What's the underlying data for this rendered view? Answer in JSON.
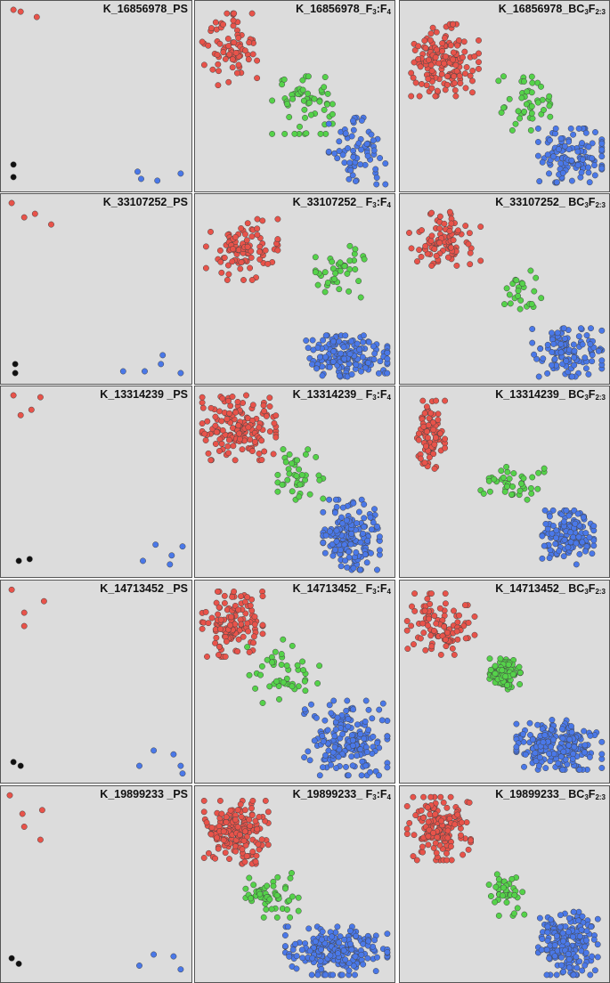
{
  "colors": {
    "background": "#dcdcdc",
    "border": "#555555",
    "red": "#e8534a",
    "green": "#55d24a",
    "blue": "#4a78e8",
    "black": "#111111",
    "outline": "#444444"
  },
  "chart_data": [
    {
      "type": "scatter",
      "title": "K_16856978_PS",
      "title_parts": [
        "K_16856978_PS"
      ],
      "xlim": [
        0,
        1
      ],
      "ylim": [
        0,
        1
      ],
      "grid": false,
      "series": [
        {
          "color": "red",
          "points": [
            [
              0.04,
              0.98
            ],
            [
              0.08,
              0.97
            ],
            [
              0.17,
              0.94
            ]
          ]
        },
        {
          "color": "black",
          "points": [
            [
              0.04,
              0.12
            ],
            [
              0.04,
              0.05
            ]
          ]
        },
        {
          "color": "blue",
          "points": [
            [
              0.73,
              0.08
            ],
            [
              0.75,
              0.04
            ],
            [
              0.84,
              0.03
            ],
            [
              0.97,
              0.07
            ]
          ]
        }
      ]
    },
    {
      "type": "scatter",
      "title": "K_16856978_F3:F4",
      "title_parts": [
        "K_16856978_F",
        "3",
        ":F",
        "4"
      ],
      "xlim": [
        0,
        1
      ],
      "ylim": [
        0,
        1
      ],
      "grid": false,
      "clusters": [
        {
          "color": "red",
          "cx": 0.15,
          "cy": 0.76,
          "rx": 0.15,
          "ry": 0.2,
          "n": 72
        },
        {
          "color": "green",
          "cx": 0.54,
          "cy": 0.45,
          "rx": 0.16,
          "ry": 0.16,
          "n": 60
        },
        {
          "color": "blue",
          "cx": 0.83,
          "cy": 0.18,
          "rx": 0.15,
          "ry": 0.2,
          "n": 70
        }
      ]
    },
    {
      "type": "scatter",
      "title": "K_16856978_BC3F2:3",
      "title_parts": [
        "K_16856978_BC",
        "3",
        "F",
        "2:3"
      ],
      "xlim": [
        0,
        1
      ],
      "ylim": [
        0,
        1
      ],
      "grid": false,
      "clusters": [
        {
          "color": "red",
          "cx": 0.2,
          "cy": 0.7,
          "rx": 0.17,
          "ry": 0.2,
          "n": 150
        },
        {
          "color": "green",
          "cx": 0.6,
          "cy": 0.46,
          "rx": 0.13,
          "ry": 0.15,
          "n": 45
        },
        {
          "color": "blue",
          "cx": 0.84,
          "cy": 0.17,
          "rx": 0.17,
          "ry": 0.15,
          "n": 120
        }
      ]
    },
    {
      "type": "scatter",
      "title": "K_33107252_PS",
      "title_parts": [
        "K_33107252_PS"
      ],
      "xlim": [
        0,
        1
      ],
      "ylim": [
        0,
        1
      ],
      "grid": false,
      "series": [
        {
          "color": "red",
          "points": [
            [
              0.03,
              0.98
            ],
            [
              0.1,
              0.9
            ],
            [
              0.16,
              0.92
            ],
            [
              0.25,
              0.86
            ]
          ]
        },
        {
          "color": "black",
          "points": [
            [
              0.05,
              0.08
            ],
            [
              0.05,
              0.03
            ]
          ]
        },
        {
          "color": "blue",
          "points": [
            [
              0.65,
              0.04
            ],
            [
              0.77,
              0.04
            ],
            [
              0.86,
              0.08
            ],
            [
              0.87,
              0.13
            ],
            [
              0.97,
              0.03
            ]
          ]
        }
      ]
    },
    {
      "type": "scatter",
      "title": "K_33107252_F3:F4",
      "title_parts": [
        "K_33107252_ F",
        "3",
        ":F",
        "4"
      ],
      "xlim": [
        0,
        1
      ],
      "ylim": [
        0,
        1
      ],
      "grid": false,
      "clusters": [
        {
          "color": "red",
          "cx": 0.22,
          "cy": 0.72,
          "rx": 0.19,
          "ry": 0.17,
          "n": 90
        },
        {
          "color": "green",
          "cx": 0.74,
          "cy": 0.58,
          "rx": 0.13,
          "ry": 0.16,
          "n": 40
        },
        {
          "color": "blue",
          "cx": 0.78,
          "cy": 0.12,
          "rx": 0.22,
          "ry": 0.12,
          "n": 160
        }
      ]
    },
    {
      "type": "scatter",
      "title": "K_33107252_BC3F2:3",
      "title_parts": [
        "K_33107252_ BC",
        "3",
        "F",
        "2:3"
      ],
      "xlim": [
        0,
        1
      ],
      "ylim": [
        0,
        1
      ],
      "grid": false,
      "clusters": [
        {
          "color": "red",
          "cx": 0.2,
          "cy": 0.78,
          "rx": 0.18,
          "ry": 0.15,
          "n": 90
        },
        {
          "color": "green",
          "cx": 0.6,
          "cy": 0.47,
          "rx": 0.1,
          "ry": 0.14,
          "n": 24
        },
        {
          "color": "blue",
          "cx": 0.82,
          "cy": 0.14,
          "rx": 0.18,
          "ry": 0.14,
          "n": 110
        }
      ]
    },
    {
      "type": "scatter",
      "title": "K_13314239_PS",
      "title_parts": [
        "K_13314239 _PS"
      ],
      "xlim": [
        0,
        1
      ],
      "ylim": [
        0,
        1
      ],
      "grid": false,
      "series": [
        {
          "color": "red",
          "points": [
            [
              0.04,
              0.98
            ],
            [
              0.08,
              0.87
            ],
            [
              0.14,
              0.9
            ],
            [
              0.19,
              0.97
            ]
          ]
        },
        {
          "color": "black",
          "points": [
            [
              0.07,
              0.06
            ],
            [
              0.13,
              0.07
            ]
          ]
        },
        {
          "color": "blue",
          "points": [
            [
              0.76,
              0.06
            ],
            [
              0.83,
              0.15
            ],
            [
              0.91,
              0.04
            ],
            [
              0.92,
              0.09
            ],
            [
              0.98,
              0.14
            ]
          ]
        }
      ]
    },
    {
      "type": "scatter",
      "title": "K_13314239_F3:F4",
      "title_parts": [
        "K_13314239_ F",
        "3",
        ":F",
        "4"
      ],
      "xlim": [
        0,
        1
      ],
      "ylim": [
        0,
        1
      ],
      "grid": false,
      "clusters": [
        {
          "color": "red",
          "cx": 0.2,
          "cy": 0.8,
          "rx": 0.2,
          "ry": 0.18,
          "n": 150
        },
        {
          "color": "green",
          "cx": 0.53,
          "cy": 0.54,
          "rx": 0.12,
          "ry": 0.14,
          "n": 40
        },
        {
          "color": "blue",
          "cx": 0.8,
          "cy": 0.2,
          "rx": 0.15,
          "ry": 0.2,
          "n": 170
        }
      ]
    },
    {
      "type": "scatter",
      "title": "K_13314239_BC3F2:3",
      "title_parts": [
        "K_13314239_ BC",
        "3",
        "F",
        "2:3"
      ],
      "xlim": [
        0,
        1
      ],
      "ylim": [
        0,
        1
      ],
      "grid": false,
      "clusters": [
        {
          "color": "red",
          "cx": 0.13,
          "cy": 0.75,
          "rx": 0.07,
          "ry": 0.2,
          "n": 80
        },
        {
          "color": "green",
          "cx": 0.52,
          "cy": 0.5,
          "rx": 0.18,
          "ry": 0.1,
          "n": 40
        },
        {
          "color": "blue",
          "cx": 0.82,
          "cy": 0.19,
          "rx": 0.13,
          "ry": 0.15,
          "n": 140
        }
      ]
    },
    {
      "type": "scatter",
      "title": "K_14713452_PS",
      "title_parts": [
        "K_14713452 _PS"
      ],
      "xlim": [
        0,
        1
      ],
      "ylim": [
        0,
        1
      ],
      "grid": false,
      "series": [
        {
          "color": "red",
          "points": [
            [
              0.03,
              0.98
            ],
            [
              0.1,
              0.79
            ],
            [
              0.1,
              0.86
            ],
            [
              0.21,
              0.92
            ]
          ]
        },
        {
          "color": "black",
          "points": [
            [
              0.04,
              0.08
            ],
            [
              0.08,
              0.06
            ]
          ]
        },
        {
          "color": "blue",
          "points": [
            [
              0.74,
              0.06
            ],
            [
              0.82,
              0.14
            ],
            [
              0.93,
              0.12
            ],
            [
              0.97,
              0.06
            ],
            [
              0.98,
              0.02
            ]
          ]
        }
      ]
    },
    {
      "type": "scatter",
      "title": "K_14713452_F3:F4",
      "title_parts": [
        "K_14713452_ F",
        "3",
        ":F",
        "4"
      ],
      "xlim": [
        0,
        1
      ],
      "ylim": [
        0,
        1
      ],
      "grid": false,
      "clusters": [
        {
          "color": "red",
          "cx": 0.17,
          "cy": 0.8,
          "rx": 0.16,
          "ry": 0.17,
          "n": 130
        },
        {
          "color": "green",
          "cx": 0.43,
          "cy": 0.55,
          "rx": 0.2,
          "ry": 0.17,
          "n": 45
        },
        {
          "color": "blue",
          "cx": 0.77,
          "cy": 0.2,
          "rx": 0.22,
          "ry": 0.2,
          "n": 170
        }
      ]
    },
    {
      "type": "scatter",
      "title": "K_14713452_BC3F2:3",
      "title_parts": [
        "K_14713452_ BC",
        "3",
        "F",
        "2:3"
      ],
      "xlim": [
        0,
        1
      ],
      "ylim": [
        0,
        1
      ],
      "grid": false,
      "clusters": [
        {
          "color": "red",
          "cx": 0.18,
          "cy": 0.8,
          "rx": 0.17,
          "ry": 0.16,
          "n": 95
        },
        {
          "color": "green",
          "cx": 0.5,
          "cy": 0.54,
          "rx": 0.08,
          "ry": 0.08,
          "n": 110
        },
        {
          "color": "blue",
          "cx": 0.78,
          "cy": 0.17,
          "rx": 0.22,
          "ry": 0.13,
          "n": 200
        }
      ]
    },
    {
      "type": "scatter",
      "title": "K_19899233_PS",
      "title_parts": [
        "K_19899233 _PS"
      ],
      "xlim": [
        0,
        1
      ],
      "ylim": [
        0,
        1
      ],
      "grid": false,
      "series": [
        {
          "color": "red",
          "points": [
            [
              0.02,
              0.98
            ],
            [
              0.09,
              0.88
            ],
            [
              0.1,
              0.81
            ],
            [
              0.19,
              0.74
            ],
            [
              0.2,
              0.9
            ]
          ]
        },
        {
          "color": "black",
          "points": [
            [
              0.03,
              0.1
            ],
            [
              0.07,
              0.07
            ]
          ]
        },
        {
          "color": "blue",
          "points": [
            [
              0.74,
              0.06
            ],
            [
              0.82,
              0.12
            ],
            [
              0.93,
              0.11
            ],
            [
              0.97,
              0.04
            ]
          ]
        }
      ]
    },
    {
      "type": "scatter",
      "title": "K_19899233_F3:F4",
      "title_parts": [
        "K_19899233_ F",
        "3",
        ":F",
        "4"
      ],
      "xlim": [
        0,
        1
      ],
      "ylim": [
        0,
        1
      ],
      "grid": false,
      "clusters": [
        {
          "color": "red",
          "cx": 0.19,
          "cy": 0.78,
          "rx": 0.17,
          "ry": 0.17,
          "n": 170
        },
        {
          "color": "green",
          "cx": 0.38,
          "cy": 0.44,
          "rx": 0.14,
          "ry": 0.12,
          "n": 55
        },
        {
          "color": "blue",
          "cx": 0.72,
          "cy": 0.13,
          "rx": 0.27,
          "ry": 0.14,
          "n": 200
        }
      ]
    },
    {
      "type": "scatter",
      "title": "K_19899233_BC3F2:3",
      "title_parts": [
        "K_19899233_ BC",
        "3",
        "F",
        "2:3"
      ],
      "xlim": [
        0,
        1
      ],
      "ylim": [
        0,
        1
      ],
      "grid": false,
      "clusters": [
        {
          "color": "red",
          "cx": 0.17,
          "cy": 0.8,
          "rx": 0.16,
          "ry": 0.17,
          "n": 150
        },
        {
          "color": "green",
          "cx": 0.5,
          "cy": 0.45,
          "rx": 0.1,
          "ry": 0.12,
          "n": 40
        },
        {
          "color": "blue",
          "cx": 0.82,
          "cy": 0.17,
          "rx": 0.15,
          "ry": 0.18,
          "n": 190
        }
      ]
    }
  ]
}
